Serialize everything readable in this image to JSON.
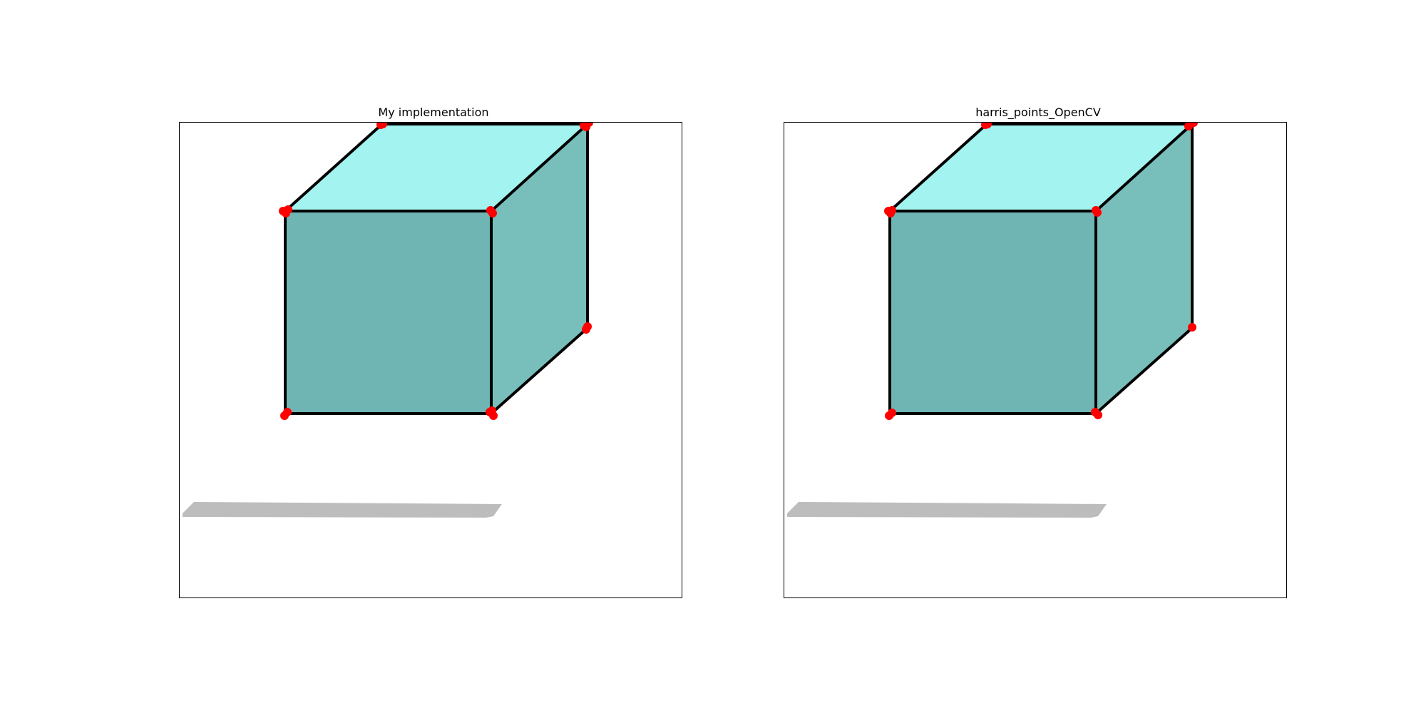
{
  "panels": [
    {
      "id": "left",
      "title": "My implementation"
    },
    {
      "id": "right",
      "title": "harris_points_OpenCV"
    }
  ],
  "colors": {
    "cube_top": "#a3f3f0",
    "cube_front": "#6eb5b3",
    "cube_side": "#78bfbc",
    "shadow": "#bdbdbd",
    "edge": "#000000",
    "corner_points": "#ff0000"
  }
}
